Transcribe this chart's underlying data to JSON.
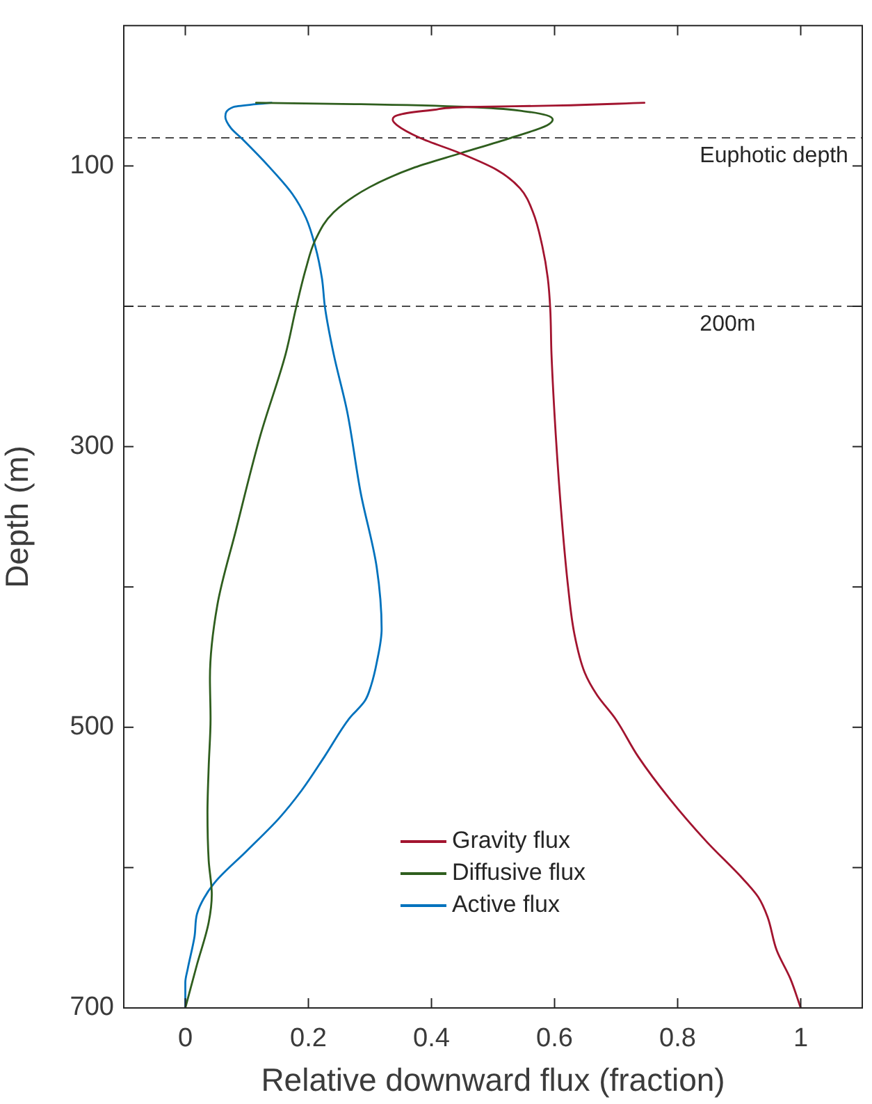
{
  "chart_data": {
    "type": "line",
    "xlabel": "Relative downward flux (fraction)",
    "ylabel": "Depth (m)",
    "xlim": [
      -0.1,
      1.1
    ],
    "ylim": [
      700,
      0
    ],
    "xticks": [
      0,
      0.2,
      0.4,
      0.6,
      0.8,
      1
    ],
    "yticks": [
      100,
      {
        "value": 200,
        "label": null
      },
      300,
      {
        "value": 400,
        "label": null
      },
      500,
      {
        "value": 600,
        "label": null
      },
      700
    ],
    "legend": "bottom",
    "series": [
      {
        "name": "Gravity flux",
        "color": "#a2142f",
        "x": [
          0.746,
          0.602,
          0.46,
          0.404,
          0.352,
          0.337,
          0.344,
          0.381,
          0.447,
          0.507,
          0.544,
          0.565,
          0.58,
          0.589,
          0.593,
          0.595,
          0.602,
          0.612,
          0.622,
          0.632,
          0.649,
          0.669,
          0.699,
          0.736,
          0.787,
          0.846,
          0.906,
          0.931,
          0.946,
          0.961,
          0.983,
          1.0
        ],
        "values": [
          55,
          57,
          58,
          60,
          63,
          67,
          71,
          80,
          91,
          103,
          116,
          133,
          157,
          180,
          202,
          234,
          292,
          353,
          400,
          433,
          461,
          477,
          494,
          521,
          551,
          581,
          608,
          621,
          635,
          659,
          679,
          700
        ]
      },
      {
        "name": "Diffusive flux",
        "color": "#2f5e1e",
        "x": [
          0.115,
          0.285,
          0.462,
          0.55,
          0.597,
          0.588,
          0.529,
          0.447,
          0.373,
          0.3,
          0.241,
          0.211,
          0.196,
          0.18,
          0.163,
          0.122,
          0.082,
          0.052,
          0.04,
          0.041,
          0.038,
          0.036,
          0.038,
          0.043,
          0.038,
          0.019,
          0.0
        ],
        "values": [
          55,
          56,
          58,
          61,
          67,
          71,
          80,
          91,
          101,
          115,
          133,
          153,
          173,
          201,
          234,
          292,
          360,
          413,
          465,
          494,
          528,
          561,
          595,
          619,
          639,
          669,
          700
        ]
      },
      {
        "name": "Active flux",
        "color": "#0072bd",
        "x": [
          0.14,
          0.115,
          0.078,
          0.065,
          0.074,
          0.093,
          0.137,
          0.174,
          0.196,
          0.211,
          0.222,
          0.227,
          0.241,
          0.263,
          0.285,
          0.311,
          0.319,
          0.311,
          0.302,
          0.292,
          0.266,
          0.226,
          0.189,
          0.152,
          0.1,
          0.049,
          0.03,
          0.019,
          0.015,
          0.004,
          0.0,
          0.0
        ],
        "values": [
          55,
          56,
          58,
          65,
          73,
          81,
          101,
          120,
          137,
          157,
          180,
          201,
          234,
          275,
          333,
          386,
          430,
          454,
          470,
          481,
          494,
          521,
          545,
          565,
          588,
          610,
          622,
          633,
          649,
          672,
          682,
          700
        ]
      }
    ],
    "ref_lines": [
      {
        "axis": "y",
        "value": 80,
        "label": "Euphotic depth",
        "color": "#4a4a4a",
        "line_style": "dashed"
      },
      {
        "axis": "y",
        "value": 200,
        "label": "200m",
        "color": "#4a4a4a",
        "line_style": "dashed"
      }
    ]
  }
}
